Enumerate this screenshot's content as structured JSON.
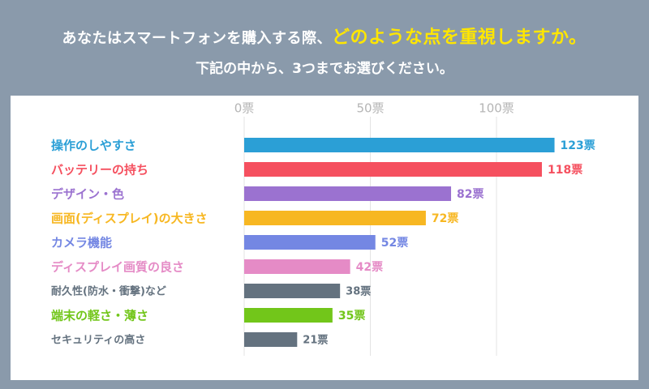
{
  "header": {
    "question_prefix": "あなたはスマートフォンを購入する際、",
    "question_highlight": "どのような点を重視しますか。",
    "instruction": "下記の中から、3つまでお選びください。"
  },
  "chart_data": {
    "type": "bar",
    "orientation": "horizontal",
    "value_suffix": "票",
    "xlim": [
      0,
      130
    ],
    "ticks": [
      {
        "value": 0,
        "label": "0票"
      },
      {
        "value": 50,
        "label": "50票"
      },
      {
        "value": 100,
        "label": "100票"
      }
    ],
    "grid": true,
    "categories": [
      "操作のしやすさ",
      "バッテリーの持ち",
      "デザイン・色",
      "画面(ディスプレイ)の大きさ",
      "カメラ機能",
      "ディスプレイ画質の良さ",
      "耐久性(防水・衝撃)など",
      "端末の軽さ・薄さ",
      "セキュリティの高さ"
    ],
    "values": [
      123,
      118,
      82,
      72,
      52,
      42,
      38,
      35,
      21
    ],
    "value_labels": [
      "123票",
      "118票",
      "82票",
      "72票",
      "52票",
      "42票",
      "38票",
      "35票",
      "21票"
    ],
    "colors": [
      "#2b9fd6",
      "#f5505f",
      "#9b72d0",
      "#f7b722",
      "#7487e3",
      "#e58bc6",
      "#64727f",
      "#72c61a",
      "#64727f"
    ],
    "label_sizes": [
      "large",
      "large",
      "large",
      "large",
      "large",
      "large",
      "small",
      "large",
      "small"
    ]
  }
}
